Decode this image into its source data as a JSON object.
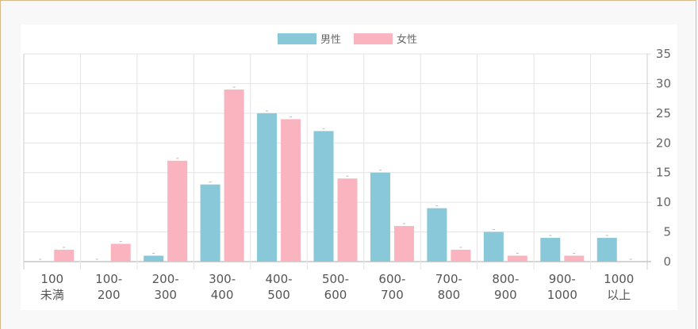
{
  "chart_data": {
    "type": "bar",
    "categories": [
      [
        "100",
        "未満"
      ],
      [
        "100-",
        "200"
      ],
      [
        "200-",
        "300"
      ],
      [
        "300-",
        "400"
      ],
      [
        "400-",
        "500"
      ],
      [
        "500-",
        "600"
      ],
      [
        "600-",
        "700"
      ],
      [
        "700-",
        "800"
      ],
      [
        "800-",
        "900"
      ],
      [
        "900-",
        "1000"
      ],
      [
        "1000",
        "以上"
      ]
    ],
    "series": [
      {
        "name": "男性",
        "color": "#89c8d8",
        "values": [
          0,
          0,
          1,
          13,
          25,
          22,
          15,
          9,
          5,
          4,
          4
        ]
      },
      {
        "name": "女性",
        "color": "#f9b4bf",
        "values": [
          2,
          3,
          17,
          29,
          24,
          14,
          6,
          2,
          1,
          1,
          0
        ]
      }
    ],
    "ylim": [
      0,
      35
    ],
    "yticks": [
      "0",
      "5",
      "10",
      "15",
      "20",
      "25",
      "30",
      "35"
    ],
    "y_axis_position": "right",
    "legend_position": "top-center",
    "grid": true
  }
}
